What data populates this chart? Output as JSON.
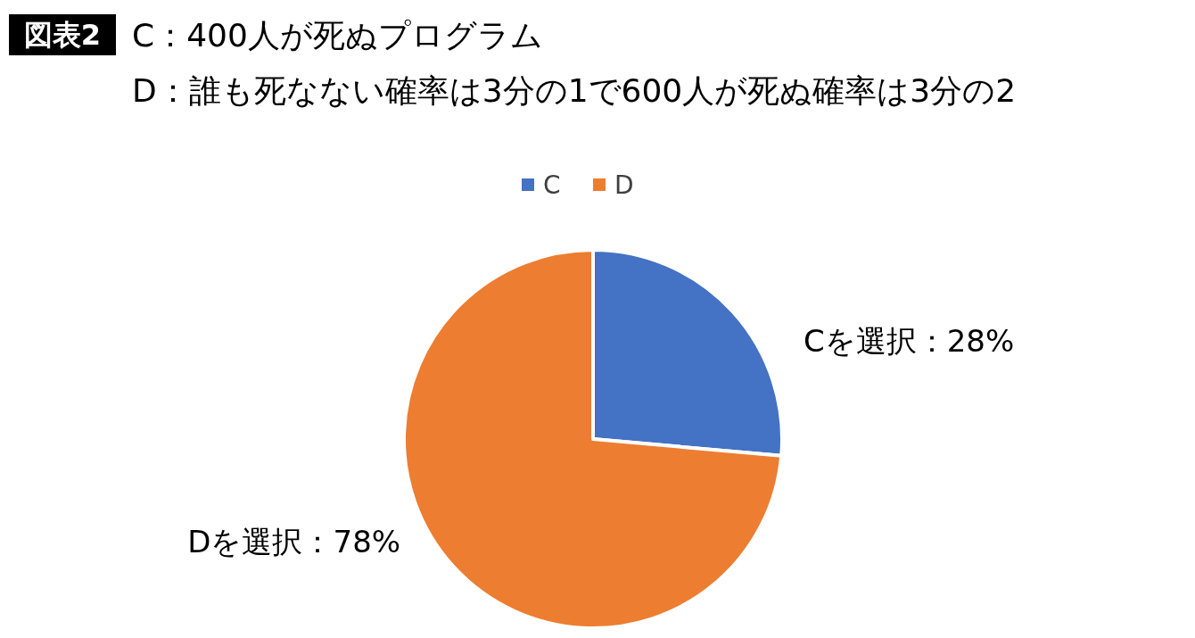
{
  "chart_data": {
    "type": "pie",
    "title": "図表2",
    "subtitle": "C：400人が死ぬプログラム\nD：誰も死なない確率は3分の1で600人が死ぬ確率は3分の2",
    "categories": [
      "C",
      "D"
    ],
    "values": [
      28,
      78
    ],
    "colors": [
      "#4472c4",
      "#ed7d31"
    ],
    "value_labels": [
      "Cを選択：28%",
      "Dを選択：78%"
    ],
    "legend": "top"
  }
}
